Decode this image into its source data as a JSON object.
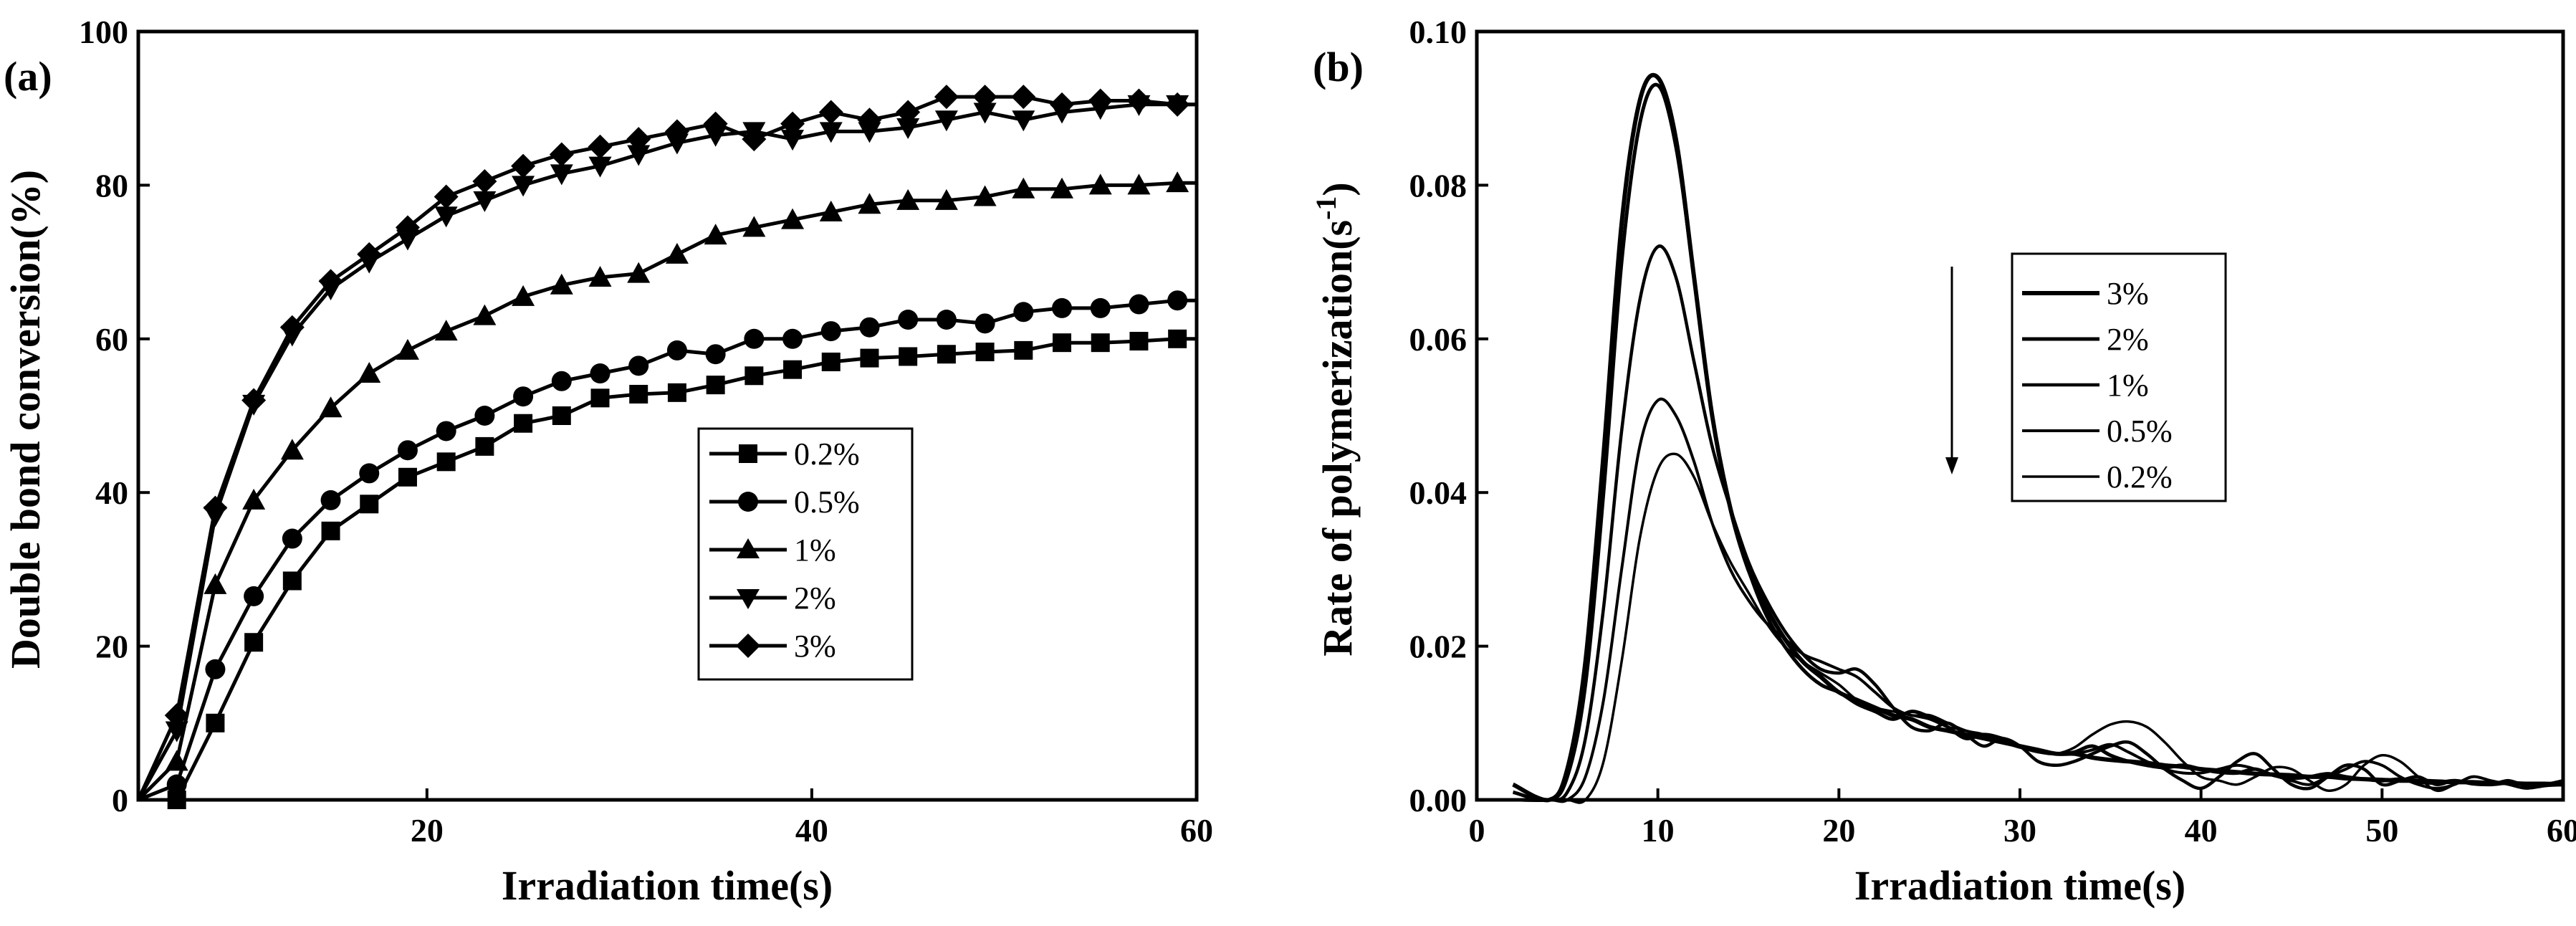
{
  "figure": {
    "colors": {
      "ink": "#000000",
      "background": "#ffffff"
    }
  },
  "chart_data": [
    {
      "panel_label": "(a)",
      "type": "line",
      "xlabel": "Irradiation time(s)",
      "ylabel": "Double bond conversion(%)",
      "xlim": [
        5,
        60
      ],
      "ylim": [
        0,
        100
      ],
      "xticks": [
        20,
        40,
        60
      ],
      "yticks": [
        0,
        20,
        40,
        60,
        80,
        100
      ],
      "legend_position": "center-right",
      "series": [
        {
          "name": "0.2%",
          "marker": "square",
          "x": [
            5,
            7,
            9,
            11,
            13,
            15,
            17,
            19,
            21,
            23,
            25,
            27,
            29,
            31,
            33,
            35,
            37,
            39,
            41,
            43,
            45,
            47,
            49,
            51,
            53,
            55,
            57,
            59,
            60
          ],
          "y": [
            0,
            0,
            10,
            20.5,
            28.5,
            35,
            38.5,
            42,
            44,
            46,
            49,
            50,
            52.3,
            52.8,
            53,
            54,
            55.2,
            56,
            57,
            57.5,
            57.7,
            58,
            58.3,
            58.5,
            59.5,
            59.5,
            59.7,
            60,
            60
          ]
        },
        {
          "name": "0.5%",
          "marker": "circle",
          "x": [
            5,
            7,
            9,
            11,
            13,
            15,
            17,
            19,
            21,
            23,
            25,
            27,
            29,
            31,
            33,
            35,
            37,
            39,
            41,
            43,
            45,
            47,
            49,
            51,
            53,
            55,
            57,
            59,
            60
          ],
          "y": [
            0,
            2,
            17,
            26.5,
            34,
            39,
            42.5,
            45.5,
            48,
            50,
            52.5,
            54.5,
            55.5,
            56.5,
            58.5,
            58,
            60,
            60,
            61,
            61.5,
            62.5,
            62.5,
            62,
            63.5,
            64,
            64,
            64.5,
            65,
            65
          ]
        },
        {
          "name": "1%",
          "marker": "triangle-up",
          "x": [
            5,
            7,
            9,
            11,
            13,
            15,
            17,
            19,
            21,
            23,
            25,
            27,
            29,
            31,
            33,
            35,
            37,
            39,
            41,
            43,
            45,
            47,
            49,
            51,
            53,
            55,
            57,
            59,
            60
          ],
          "y": [
            0,
            5,
            28,
            39,
            45.5,
            51,
            55.5,
            58.5,
            61,
            63,
            65.5,
            67,
            68,
            68.5,
            71,
            73.5,
            74.5,
            75.5,
            76.5,
            77.5,
            78,
            78,
            78.5,
            79.5,
            79.5,
            80,
            80,
            80.3,
            80.3
          ]
        },
        {
          "name": "2%",
          "marker": "triangle-down",
          "x": [
            5,
            7,
            9,
            11,
            13,
            15,
            17,
            19,
            21,
            23,
            25,
            27,
            29,
            31,
            33,
            35,
            37,
            39,
            41,
            43,
            45,
            47,
            49,
            51,
            53,
            55,
            57,
            59,
            60
          ],
          "y": [
            0,
            9,
            37,
            51.5,
            60.5,
            66.5,
            70,
            73,
            76,
            78,
            80,
            81.5,
            82.5,
            84,
            85.5,
            86.5,
            87,
            86,
            87,
            87,
            87.5,
            88.5,
            89.5,
            88.5,
            89.5,
            90,
            90.5,
            90.5,
            90.5
          ]
        },
        {
          "name": "3%",
          "marker": "diamond",
          "x": [
            5,
            7,
            9,
            11,
            13,
            15,
            17,
            19,
            21,
            23,
            25,
            27,
            29,
            31,
            33,
            35,
            37,
            39,
            41,
            43,
            45,
            47,
            49,
            51,
            53,
            55,
            57,
            59,
            60
          ],
          "y": [
            0,
            11,
            38,
            52,
            61.5,
            67.5,
            71,
            74.5,
            78.5,
            80.5,
            82.5,
            84,
            85,
            86,
            87,
            88,
            86,
            88,
            89.5,
            88.5,
            89.5,
            91.5,
            91.5,
            91.5,
            90.5,
            91,
            91,
            90.5,
            90.5
          ]
        }
      ]
    },
    {
      "panel_label": "(b)",
      "type": "line",
      "xlabel": "Irradiation time(s)",
      "ylabel_main": "Rate of polymerization(s",
      "ylabel_sup": "-1",
      "ylabel_end": ")",
      "xlim": [
        0,
        60
      ],
      "ylim": [
        0,
        0.1
      ],
      "xticks": [
        0,
        10,
        20,
        30,
        40,
        50,
        60
      ],
      "xtick_labels": [
        "0",
        "10",
        "20",
        "30",
        "40",
        "50",
        "60"
      ],
      "yticks": [
        0,
        0.02,
        0.04,
        0.06,
        0.08,
        0.1
      ],
      "ytick_labels": [
        "0.00",
        "0.02",
        "0.04",
        "0.06",
        "0.08",
        "0.10"
      ],
      "legend_position": "center-right",
      "arrow_direction": "down",
      "series": [
        {
          "name": "3%",
          "stroke_width": 6,
          "x": [
            2,
            4,
            5,
            6,
            7,
            8,
            9,
            10,
            11,
            12,
            13,
            14,
            15,
            16,
            17,
            18,
            19,
            20,
            21,
            22,
            23,
            24,
            25,
            26,
            27,
            28,
            29,
            30,
            31,
            32,
            33,
            34,
            35,
            36,
            37,
            38,
            39,
            40,
            41,
            42,
            43,
            44,
            45,
            46,
            47,
            48,
            49,
            50,
            51,
            52,
            53,
            54,
            55,
            56,
            57,
            58,
            59,
            60
          ],
          "y": [
            0.002,
            0,
            0.004,
            0.018,
            0.045,
            0.075,
            0.091,
            0.094,
            0.086,
            0.068,
            0.05,
            0.038,
            0.03,
            0.025,
            0.021,
            0.018,
            0.016,
            0.014,
            0.013,
            0.012,
            0.011,
            0.0105,
            0.0095,
            0.009,
            0.0085,
            0.008,
            0.0075,
            0.007,
            0.0065,
            0.006,
            0.006,
            0.0055,
            0.0052,
            0.005,
            0.0048,
            0.0045,
            0.0043,
            0.004,
            0.0038,
            0.0036,
            0.0034,
            0.0033,
            0.0032,
            0.003,
            0.003,
            0.0028,
            0.0027,
            0.0026,
            0.0025,
            0.0025,
            0.0024,
            0.0023,
            0.0023,
            0.0022,
            0.0022,
            0.0021,
            0.0021,
            0.002
          ]
        },
        {
          "name": "2%",
          "stroke_width": 5,
          "x": [
            2,
            4,
            5,
            6,
            7,
            8,
            9,
            10,
            11,
            12,
            13,
            14,
            15,
            16,
            17,
            18,
            19,
            20,
            21,
            22,
            23,
            24,
            25,
            26,
            27,
            28,
            29,
            30,
            31,
            32,
            33,
            34,
            35,
            36,
            37,
            38,
            39,
            40,
            41,
            42,
            43,
            44,
            45,
            46,
            47,
            48,
            49,
            50,
            51,
            52,
            53,
            54,
            55,
            56,
            57,
            58,
            59,
            60
          ],
          "y": [
            0.001,
            0,
            0.003,
            0.015,
            0.04,
            0.07,
            0.088,
            0.093,
            0.085,
            0.068,
            0.05,
            0.038,
            0.03,
            0.024,
            0.02,
            0.017,
            0.015,
            0.014,
            0.0125,
            0.0115,
            0.0105,
            0.0115,
            0.0108,
            0.0095,
            0.008,
            0.0085,
            0.008,
            0.007,
            0.0065,
            0.006,
            0.0062,
            0.007,
            0.0058,
            0.005,
            0.0045,
            0.0042,
            0.0045,
            0.004,
            0.0036,
            0.0035,
            0.004,
            0.0032,
            0.0028,
            0.003,
            0.0034,
            0.003,
            0.0027,
            0.0025,
            0.0027,
            0.0023,
            0.0022,
            0.0025,
            0.0021,
            0.002,
            0.0022,
            0.002,
            0.0019,
            0.002
          ]
        },
        {
          "name": "1%",
          "stroke_width": 4.5,
          "x": [
            2,
            4,
            5,
            6,
            7,
            8,
            9,
            10,
            11,
            12,
            13,
            14,
            15,
            16,
            17,
            18,
            19,
            20,
            21,
            22,
            23,
            24,
            25,
            26,
            27,
            28,
            29,
            30,
            31,
            32,
            33,
            34,
            35,
            36,
            37,
            38,
            39,
            40,
            41,
            42,
            43,
            44,
            45,
            46,
            47,
            48,
            49,
            50,
            51,
            52,
            53,
            54,
            55,
            56,
            57,
            58,
            59,
            60
          ],
          "y": [
            0,
            0,
            0.001,
            0.008,
            0.025,
            0.048,
            0.065,
            0.072,
            0.068,
            0.057,
            0.046,
            0.038,
            0.031,
            0.026,
            0.022,
            0.019,
            0.017,
            0.0165,
            0.017,
            0.015,
            0.012,
            0.0095,
            0.009,
            0.01,
            0.0085,
            0.007,
            0.008,
            0.007,
            0.005,
            0.0045,
            0.005,
            0.006,
            0.007,
            0.0075,
            0.006,
            0.004,
            0.0025,
            0.0015,
            0.003,
            0.005,
            0.006,
            0.004,
            0.002,
            0.0015,
            0.003,
            0.0045,
            0.004,
            0.002,
            0.0025,
            0.003,
            0.002,
            0.0025,
            0.0022,
            0.002,
            0.0025,
            0.0018,
            0.002,
            0.0025
          ]
        },
        {
          "name": "0.5%",
          "stroke_width": 4,
          "x": [
            2,
            4,
            5,
            6,
            7,
            8,
            9,
            10,
            11,
            12,
            13,
            14,
            15,
            16,
            17,
            18,
            19,
            20,
            21,
            22,
            23,
            24,
            25,
            26,
            27,
            28,
            29,
            30,
            31,
            32,
            33,
            34,
            35,
            36,
            37,
            38,
            39,
            40,
            41,
            42,
            43,
            44,
            45,
            46,
            47,
            48,
            49,
            50,
            51,
            52,
            53,
            54,
            55,
            56,
            57,
            58,
            59,
            60
          ],
          "y": [
            0,
            0,
            0,
            0.003,
            0.013,
            0.03,
            0.046,
            0.052,
            0.05,
            0.044,
            0.036,
            0.03,
            0.026,
            0.023,
            0.021,
            0.019,
            0.018,
            0.017,
            0.016,
            0.014,
            0.012,
            0.011,
            0.011,
            0.01,
            0.009,
            0.0085,
            0.0075,
            0.007,
            0.0065,
            0.006,
            0.006,
            0.0065,
            0.0072,
            0.0062,
            0.005,
            0.004,
            0.0035,
            0.0035,
            0.004,
            0.0045,
            0.004,
            0.0032,
            0.0025,
            0.002,
            0.003,
            0.004,
            0.005,
            0.0045,
            0.003,
            0.002,
            0.0015,
            0.002,
            0.003,
            0.0025,
            0.002,
            0.0015,
            0.002,
            0.0022
          ]
        },
        {
          "name": "0.2%",
          "stroke_width": 3.5,
          "x": [
            2,
            4,
            5,
            6,
            7,
            8,
            9,
            10,
            11,
            12,
            13,
            14,
            15,
            16,
            17,
            18,
            19,
            20,
            21,
            22,
            23,
            24,
            25,
            26,
            27,
            28,
            29,
            30,
            31,
            32,
            33,
            34,
            35,
            36,
            37,
            38,
            39,
            40,
            41,
            42,
            43,
            44,
            45,
            46,
            47,
            48,
            49,
            50,
            51,
            52,
            53,
            54,
            55,
            56,
            57,
            58,
            59,
            60
          ],
          "y": [
            0,
            0,
            0,
            0,
            0.005,
            0.018,
            0.034,
            0.043,
            0.045,
            0.042,
            0.036,
            0.031,
            0.027,
            0.023,
            0.02,
            0.018,
            0.0165,
            0.015,
            0.013,
            0.012,
            0.0115,
            0.011,
            0.0105,
            0.0095,
            0.009,
            0.008,
            0.0075,
            0.0068,
            0.0062,
            0.006,
            0.0068,
            0.0085,
            0.0098,
            0.0102,
            0.0095,
            0.0075,
            0.005,
            0.003,
            0.0025,
            0.002,
            0.003,
            0.0042,
            0.004,
            0.0025,
            0.0012,
            0.002,
            0.0045,
            0.0058,
            0.005,
            0.003,
            0.0012,
            0.002,
            0.003,
            0.0025,
            0.002,
            0.0015,
            0.0018,
            0.002
          ]
        }
      ]
    }
  ]
}
